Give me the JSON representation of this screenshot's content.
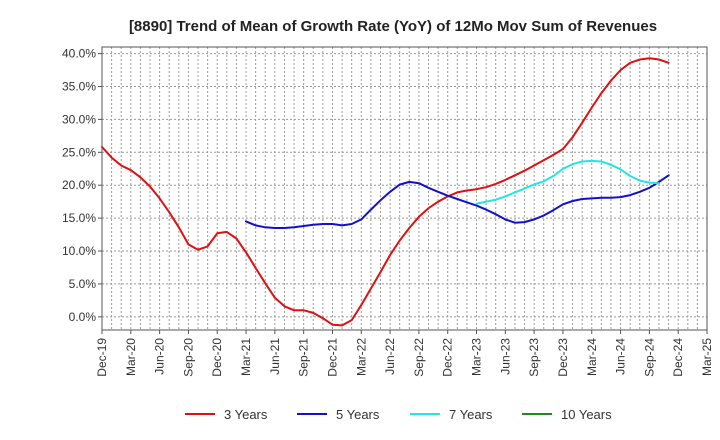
{
  "chart_data": {
    "type": "line",
    "title": "[8890]  Trend of Mean of Growth Rate (YoY) of 12Mo Mov Sum of Revenues",
    "xlabel": "",
    "ylabel": "",
    "ylim": [
      -2,
      41
    ],
    "y_ticks": [
      0,
      5,
      10,
      15,
      20,
      25,
      30,
      35,
      40
    ],
    "y_tick_labels": [
      "0.0%",
      "5.0%",
      "10.0%",
      "15.0%",
      "20.0%",
      "25.0%",
      "30.0%",
      "35.0%",
      "40.0%"
    ],
    "x_tick_labels": [
      "Dec-19",
      "Mar-20",
      "Jun-20",
      "Sep-20",
      "Dec-20",
      "Mar-21",
      "Jun-21",
      "Sep-21",
      "Dec-21",
      "Mar-22",
      "Jun-22",
      "Sep-22",
      "Dec-22",
      "Mar-23",
      "Jun-23",
      "Sep-23",
      "Dec-23",
      "Mar-24",
      "Jun-24",
      "Sep-24",
      "Dec-24",
      "Mar-25"
    ],
    "x_months_total": 63,
    "grid": true,
    "legend_position": "bottom",
    "series": [
      {
        "name": "3 Years",
        "color": "#dd1111",
        "start_month": 0,
        "values": [
          25.8,
          24.2,
          23.0,
          22.3,
          21.2,
          19.8,
          18.0,
          15.9,
          13.6,
          11.0,
          10.2,
          10.7,
          12.7,
          12.9,
          11.9,
          9.8,
          7.4,
          5.1,
          2.9,
          1.6,
          1.0,
          1.0,
          0.6,
          -0.2,
          -1.2,
          -1.3,
          -0.5,
          1.8,
          4.3,
          6.8,
          9.4,
          11.6,
          13.5,
          15.2,
          16.5,
          17.5,
          18.3,
          18.9,
          19.2,
          19.4,
          19.7,
          20.2,
          20.8,
          21.5,
          22.2,
          23.0,
          23.8,
          24.6,
          25.5,
          27.3,
          29.5,
          31.8,
          34.0,
          35.9,
          37.5,
          38.6,
          39.1,
          39.3,
          39.1,
          38.6
        ]
      },
      {
        "name": "5 Years",
        "color": "#1111cc",
        "start_month": 15,
        "values": [
          14.5,
          13.9,
          13.6,
          13.5,
          13.5,
          13.6,
          13.8,
          14.0,
          14.1,
          14.1,
          13.9,
          14.1,
          14.8,
          16.3,
          17.7,
          19.0,
          20.1,
          20.5,
          20.3,
          19.6,
          19.0,
          18.4,
          17.9,
          17.4,
          16.9,
          16.3,
          15.6,
          14.8,
          14.3,
          14.4,
          14.8,
          15.4,
          16.2,
          17.1,
          17.6,
          17.9,
          18.0,
          18.1,
          18.1,
          18.2,
          18.5,
          19.0,
          19.6,
          20.5,
          21.5
        ]
      },
      {
        "name": "7 Years",
        "color": "#22e5e5",
        "start_month": 39,
        "values": [
          17.2,
          17.5,
          17.8,
          18.3,
          18.9,
          19.5,
          20.1,
          20.6,
          21.4,
          22.5,
          23.2,
          23.6,
          23.7,
          23.6,
          23.1,
          22.4,
          21.4,
          20.7,
          20.4,
          20.3
        ]
      },
      {
        "name": "10 Years",
        "color": "#228822",
        "start_month": 0,
        "values": []
      }
    ]
  }
}
